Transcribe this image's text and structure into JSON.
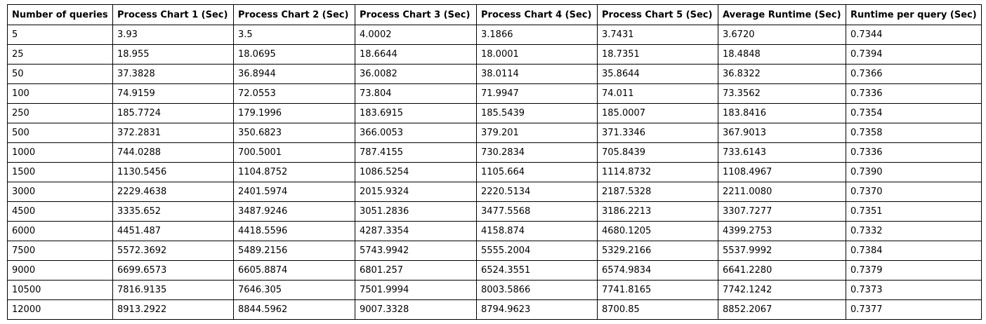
{
  "table": {
    "headers": [
      "Number of queries",
      "Process Chart 1 (Sec)",
      "Process Chart 2 (Sec)",
      "Process Chart 3 (Sec)",
      "Process Chart 4 (Sec)",
      "Process Chart 5 (Sec)",
      "Average Runtime (Sec)",
      "Runtime per query (Sec)"
    ],
    "rows": [
      [
        "5",
        "3.93",
        "3.5",
        "4.0002",
        "3.1866",
        "3.7431",
        "3.6720",
        "0.7344"
      ],
      [
        "25",
        "18.955",
        "18.0695",
        "18.6644",
        "18.0001",
        "18.7351",
        "18.4848",
        "0.7394"
      ],
      [
        "50",
        "37.3828",
        "36.8944",
        "36.0082",
        "38.0114",
        "35.8644",
        "36.8322",
        "0.7366"
      ],
      [
        "100",
        "74.9159",
        "72.0553",
        "73.804",
        "71.9947",
        "74.011",
        "73.3562",
        "0.7336"
      ],
      [
        "250",
        "185.7724",
        "179.1996",
        "183.6915",
        "185.5439",
        "185.0007",
        "183.8416",
        "0.7354"
      ],
      [
        "500",
        "372.2831",
        "350.6823",
        "366.0053",
        "379.201",
        "371.3346",
        "367.9013",
        "0.7358"
      ],
      [
        "1000",
        "744.0288",
        "700.5001",
        "787.4155",
        "730.2834",
        "705.8439",
        "733.6143",
        "0.7336"
      ],
      [
        "1500",
        "1130.5456",
        "1104.8752",
        "1086.5254",
        "1105.664",
        "1114.8732",
        "1108.4967",
        "0.7390"
      ],
      [
        "3000",
        "2229.4638",
        "2401.5974",
        "2015.9324",
        "2220.5134",
        "2187.5328",
        "2211.0080",
        "0.7370"
      ],
      [
        "4500",
        "3335.652",
        "3487.9246",
        "3051.2836",
        "3477.5568",
        "3186.2213",
        "3307.7277",
        "0.7351"
      ],
      [
        "6000",
        "4451.487",
        "4418.5596",
        "4287.3354",
        "4158.874",
        "4680.1205",
        "4399.2753",
        "0.7332"
      ],
      [
        "7500",
        "5572.3692",
        "5489.2156",
        "5743.9942",
        "5555.2004",
        "5329.2166",
        "5537.9992",
        "0.7384"
      ],
      [
        "9000",
        "6699.6573",
        "6605.8874",
        "6801.257",
        "6524.3551",
        "6574.9834",
        "6641.2280",
        "0.7379"
      ],
      [
        "10500",
        "7816.9135",
        "7646.305",
        "7501.9994",
        "8003.5866",
        "7741.8165",
        "7742.1242",
        "0.7373"
      ],
      [
        "12000",
        "8913.2922",
        "8844.5962",
        "9007.3328",
        "8794.9623",
        "8700.85",
        "8852.2067",
        "0.7377"
      ]
    ]
  }
}
